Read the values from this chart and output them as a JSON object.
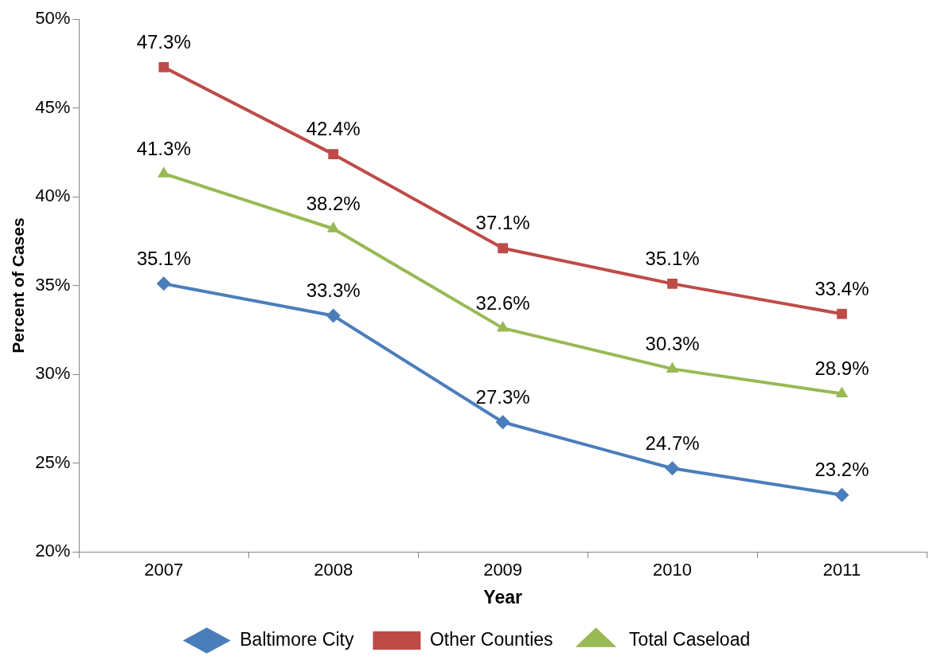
{
  "chart_data": {
    "type": "line",
    "xlabel": "Year",
    "ylabel": "Percent of Cases",
    "categories": [
      "2007",
      "2008",
      "2009",
      "2010",
      "2011"
    ],
    "series": [
      {
        "name": "Baltimore City",
        "color": "#4a7ebb",
        "marker": "diamond",
        "values": [
          35.1,
          33.3,
          27.3,
          24.7,
          23.2
        ],
        "value_labels": [
          "35.1%",
          "33.3%",
          "27.3%",
          "24.7%",
          "23.2%"
        ]
      },
      {
        "name": "Other Counties",
        "color": "#be4b48",
        "marker": "square",
        "values": [
          47.3,
          42.4,
          37.1,
          35.1,
          33.4
        ],
        "value_labels": [
          "47.3%",
          "42.4%",
          "37.1%",
          "35.1%",
          "33.4%"
        ]
      },
      {
        "name": "Total Caseload",
        "color": "#98b954",
        "marker": "triangle",
        "values": [
          41.3,
          38.2,
          32.6,
          30.3,
          28.9
        ],
        "value_labels": [
          "41.3%",
          "38.2%",
          "32.6%",
          "30.3%",
          "28.9%"
        ]
      }
    ],
    "ylim": [
      20,
      50
    ],
    "yticks": [
      {
        "value": 20,
        "label": "20%"
      },
      {
        "value": 25,
        "label": "25%"
      },
      {
        "value": 30,
        "label": "30%"
      },
      {
        "value": 35,
        "label": "35%"
      },
      {
        "value": 40,
        "label": "40%"
      },
      {
        "value": 45,
        "label": "45%"
      },
      {
        "value": 50,
        "label": "50%"
      }
    ],
    "grid": false,
    "legend": "bottom",
    "line_style": "solid"
  }
}
